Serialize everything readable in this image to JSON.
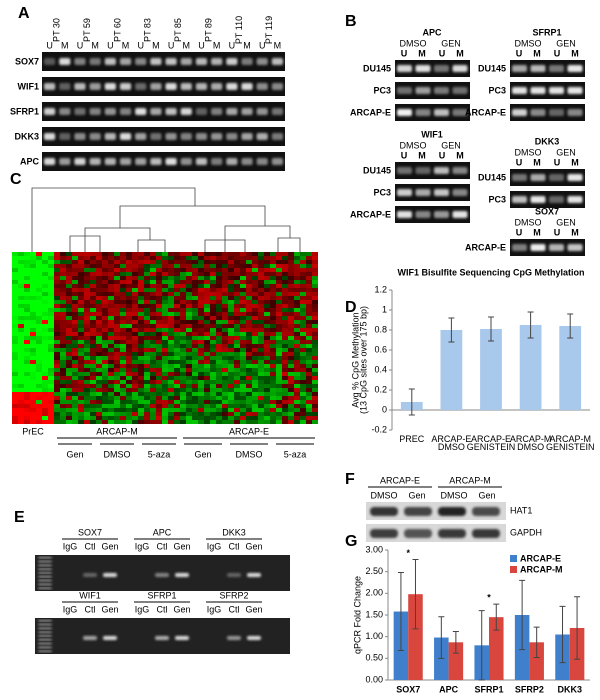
{
  "panels": {
    "A": {
      "label": "A",
      "samples": [
        "PT 30",
        "PT 59",
        "PT 60",
        "PT 83",
        "PT 85",
        "PT 89",
        "PT 110",
        "PT 119"
      ],
      "lanes": [
        "U",
        "M"
      ],
      "genes": [
        "SOX7",
        "WIF1",
        "SFRP1",
        "DKK3",
        "APC"
      ]
    },
    "B": {
      "label": "B",
      "lanes": [
        "U",
        "M"
      ],
      "blots": [
        {
          "gene": "APC",
          "treatments": [
            "DMSO",
            "GEN"
          ],
          "cells": [
            "DU145",
            "PC3",
            "ARCAP-E"
          ]
        },
        {
          "gene": "SFRP1",
          "treatments": [
            "DMSO",
            "GEN"
          ],
          "cells": [
            "DU145",
            "PC3",
            "ARCAP-E"
          ]
        },
        {
          "gene": "WIF1",
          "treatments": [
            "DMSO",
            "GEN"
          ],
          "cells": [
            "DU145",
            "PC3",
            "ARCAP-E"
          ]
        },
        {
          "gene": "DKK3",
          "treatments": [
            "DMSO",
            "GEN"
          ],
          "cells": [
            "DU145",
            "PC3"
          ]
        },
        {
          "gene": "SOX7",
          "treatments": [
            "DMSO",
            "GEN"
          ],
          "cells": [
            "ARCAP-E"
          ]
        }
      ]
    },
    "C": {
      "label": "C",
      "groups": [
        {
          "name": "PrEC"
        },
        {
          "name": "ARCAP-M",
          "treatments": [
            "Gen",
            "DMSO",
            "5-aza"
          ]
        },
        {
          "name": "ARCAP-E",
          "treatments": [
            "Gen",
            "DMSO",
            "5-aza"
          ]
        }
      ]
    },
    "D": {
      "label": "D"
    },
    "E": {
      "label": "E",
      "lanes": [
        "IgG",
        "Ctl",
        "Gen"
      ],
      "gels": [
        {
          "genes": [
            "SOX7",
            "APC",
            "DKK3"
          ]
        },
        {
          "genes": [
            "WIF1",
            "SFRP1",
            "SFRP2"
          ]
        }
      ]
    },
    "F": {
      "label": "F",
      "groups": [
        "ARCAP-E",
        "ARCAP-M"
      ],
      "treatments": [
        "DMSO",
        "Gen"
      ],
      "proteins": [
        "HAT1",
        "GAPDH"
      ]
    },
    "G": {
      "label": "G"
    }
  },
  "chart_data": [
    {
      "type": "bar",
      "title": "WIF1 Bisulfite Sequencing CpG Methylation",
      "y_label": [
        "Avg % CpG Methylation",
        "(13 CpG sites over 175 bp)"
      ],
      "categories": [
        "PREC",
        "ARCAP-E DMSO",
        "ARCAP-E GENISTEIN",
        "ARCAP-M DMSO",
        "ARCAP-M GENISTEIN"
      ],
      "values": [
        0.08,
        0.8,
        0.81,
        0.85,
        0.84
      ],
      "errors": [
        0.13,
        0.12,
        0.12,
        0.13,
        0.12
      ],
      "color": "#a9c9ec",
      "ylim": [
        -0.2,
        1.2
      ],
      "yticks": [
        -0.2,
        0,
        0.2,
        0.4,
        0.6,
        0.8,
        1,
        1.2
      ],
      "grid": false
    },
    {
      "type": "bar",
      "y_label": "qPCR Fold Change",
      "categories": [
        "SOX7",
        "APC",
        "SFRP1",
        "SFRP2",
        "DKK3"
      ],
      "series": [
        {
          "name": "ARCAP-E",
          "color": "#3f7fcc",
          "values": [
            1.58,
            0.98,
            0.8,
            1.5,
            1.05
          ],
          "errors": [
            0.9,
            0.48,
            0.8,
            0.8,
            0.65
          ]
        },
        {
          "name": "ARCAP-M",
          "color": "#d9463e",
          "values": [
            1.98,
            0.87,
            1.45,
            0.87,
            1.2
          ],
          "errors": [
            0.8,
            0.25,
            0.3,
            0.35,
            0.72
          ]
        }
      ],
      "significance": [
        "*",
        null,
        "*",
        null,
        null
      ],
      "ylim": [
        0,
        3
      ],
      "yticks": [
        {
          "value": 0,
          "label": "0.00"
        },
        {
          "value": 0.5,
          "label": "0.50"
        },
        {
          "value": 1,
          "label": "1.00"
        },
        {
          "value": 1.5,
          "label": "1.50"
        },
        {
          "value": 2,
          "label": "2.00"
        },
        {
          "value": 2.5,
          "label": "2.50"
        },
        {
          "value": 3,
          "label": "3.00"
        }
      ],
      "legend": "top-right",
      "grid": false
    }
  ]
}
